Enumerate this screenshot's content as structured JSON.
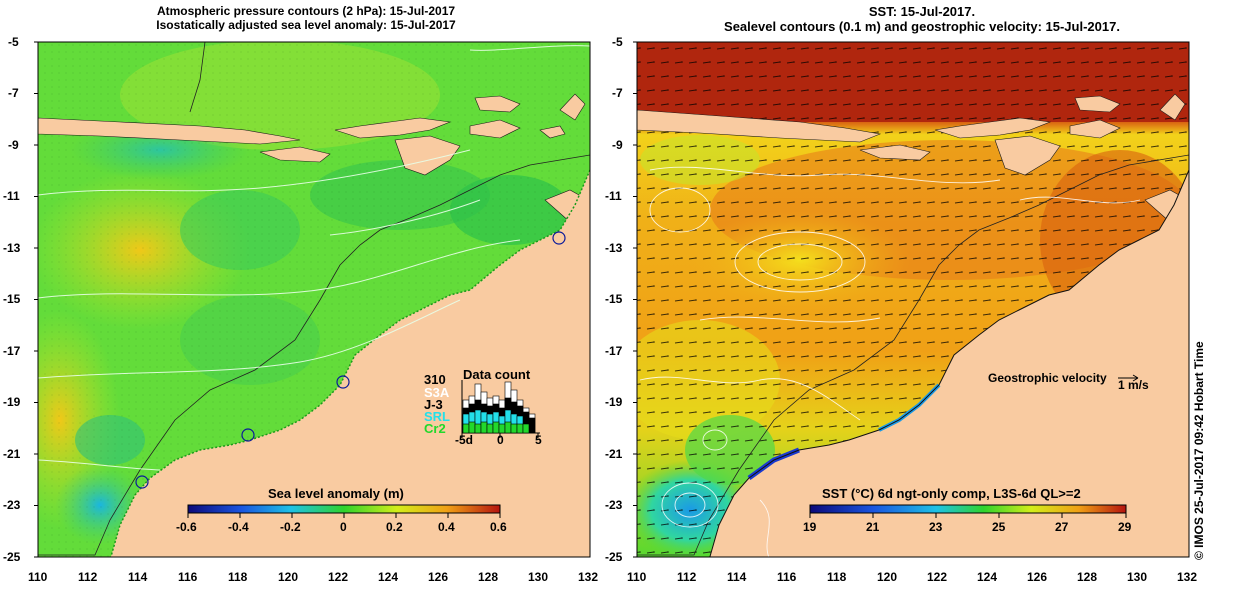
{
  "left_panel": {
    "title_line1": "Atmospheric pressure contours (2 hPa): 15-Jul-2017",
    "title_line2": "Isostatically adjusted sea level anomaly: 15-Jul-2017",
    "colorbar_title": "Sea level anomaly (m)",
    "colorbar_ticks": [
      "-0.6",
      "-0.4",
      "-0.2",
      "0",
      "0.2",
      "0.4",
      "0.6"
    ],
    "data_count": {
      "title": "Data count",
      "max_label": "310",
      "missions": [
        {
          "label": "S3A",
          "color": "#ffffff"
        },
        {
          "label": "J-3",
          "color": "#000000"
        },
        {
          "label": "SRL",
          "color": "#22e0ea"
        },
        {
          "label": "Cr2",
          "color": "#22d82b"
        }
      ],
      "x_ticks": [
        "-5d",
        "0",
        "5"
      ]
    }
  },
  "right_panel": {
    "title_line1": "SST: 15-Jul-2017.",
    "title_line2": "Sealevel contours (0.1 m) and geostrophic velocity: 15-Jul-2017.",
    "legend_text": "Geostrophic velocity",
    "legend_unit": "1 m/s",
    "colorbar_title": "SST (°C) 6d ngt-only comp, L3S-6d QL>=2",
    "colorbar_ticks": [
      "19",
      "21",
      "23",
      "25",
      "27",
      "29"
    ]
  },
  "axes": {
    "y_ticks": [
      "-5",
      "-7",
      "-9",
      "-11",
      "-13",
      "-15",
      "-17",
      "-19",
      "-21",
      "-23",
      "-25"
    ],
    "x_ticks": [
      "110",
      "112",
      "114",
      "116",
      "118",
      "120",
      "122",
      "124",
      "126",
      "128",
      "130",
      "132"
    ],
    "lon_range": [
      110,
      132
    ],
    "lat_range": [
      -25,
      -5
    ]
  },
  "side_label": "© IMOS 25-Jul-2017 09:42 Hobart Time",
  "colors": {
    "land": "#f9cba1",
    "ocean_green": "#63dc3a",
    "sst_warm": "#e2620f",
    "sst_hot": "#a51a0c",
    "sst_mid": "#f0b21a"
  }
}
